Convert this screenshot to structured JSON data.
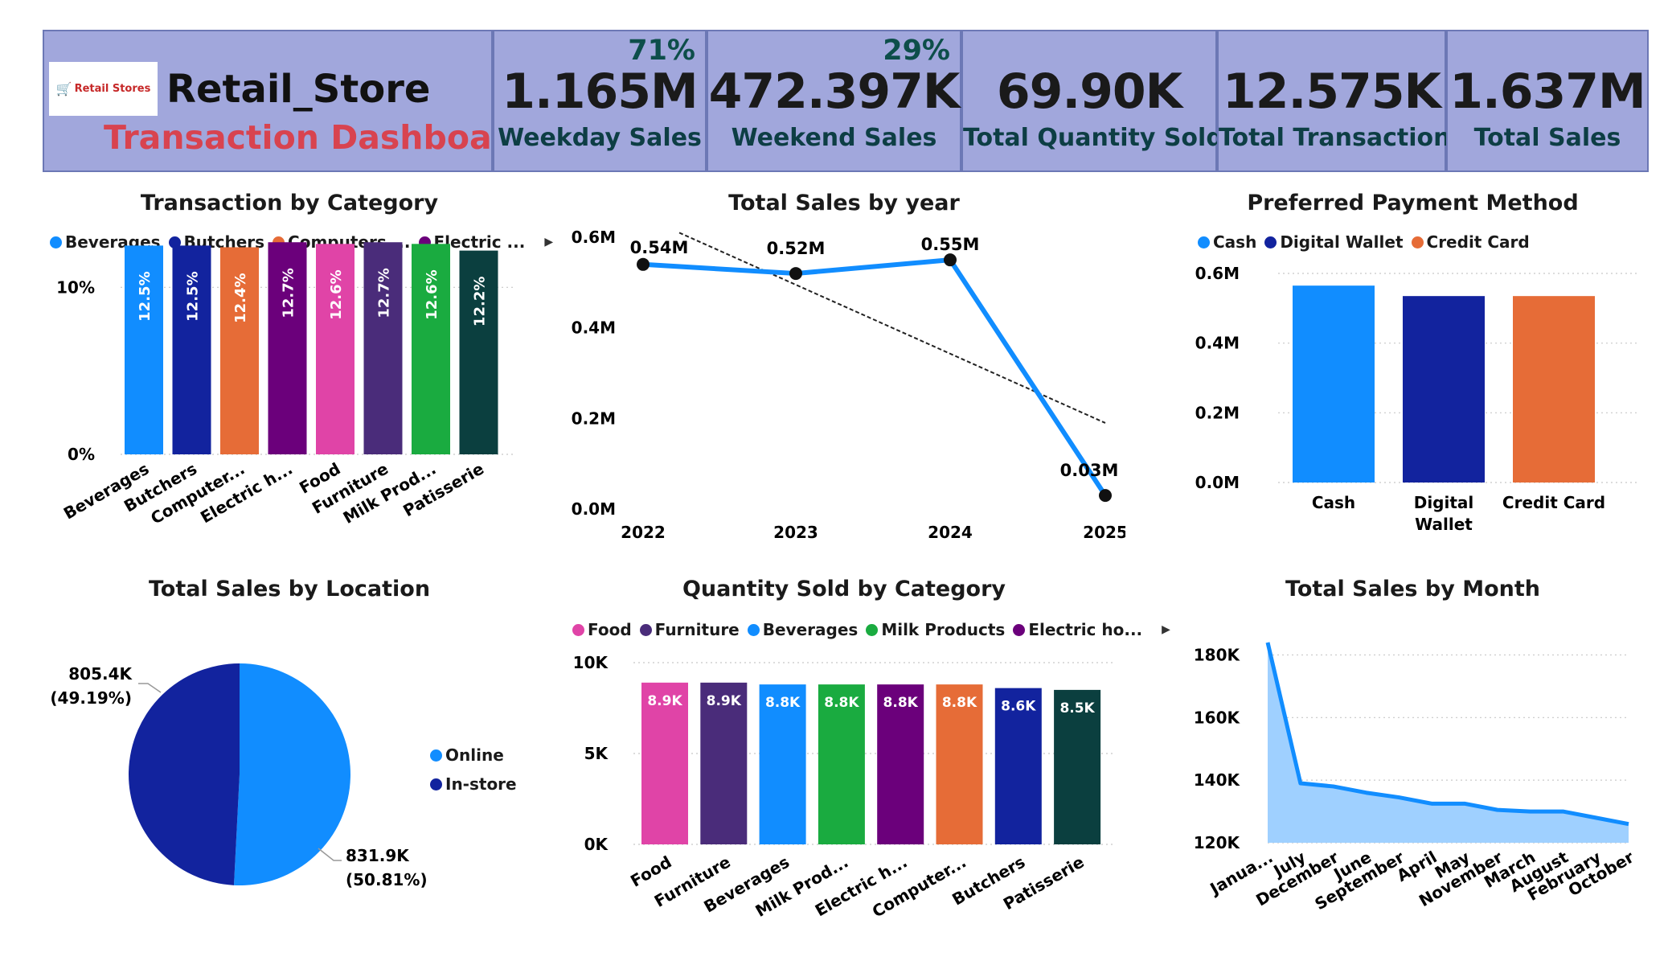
{
  "header": {
    "logo_text": "Retail Stores",
    "brand": "Retail_Store",
    "subtitle": "Transaction Dashboard",
    "kpis": [
      {
        "value": "1.165M",
        "label": "Weekday Sales",
        "pct": "71%"
      },
      {
        "value": "472.397K",
        "label": "Weekend Sales",
        "pct": "29%"
      },
      {
        "value": "69.90K",
        "label": "Total Quantity Sold",
        "pct": ""
      },
      {
        "value": "12.575K",
        "label": "Total Transaction",
        "pct": ""
      },
      {
        "value": "1.637M",
        "label": "Total Sales",
        "pct": ""
      }
    ]
  },
  "colors": {
    "header_bg": "#a1a7dc",
    "beverages": "#118dff",
    "butchers": "#12239e",
    "computers": "#e66c37",
    "electric": "#6b007b",
    "food": "#e044a7",
    "furniture": "#4a2c7a",
    "milk": "#1aab40",
    "patisserie": "#0b3f3f",
    "area_fill": "#9fd0ff"
  },
  "chart_data": [
    {
      "id": "transaction-by-category",
      "type": "bar",
      "title": "Transaction by Category",
      "legend": [
        {
          "name": "Beverages",
          "color": "#118dff"
        },
        {
          "name": "Butchers",
          "color": "#12239e"
        },
        {
          "name": "Computers ...",
          "color": "#e66c37"
        },
        {
          "name": "Electric ...",
          "color": "#6b007b"
        }
      ],
      "categories": [
        "Beverages",
        "Butchers",
        "Computer...",
        "Electric h...",
        "Food",
        "Furniture",
        "Milk Prod...",
        "Patisserie"
      ],
      "values": [
        12.5,
        12.5,
        12.4,
        12.7,
        12.6,
        12.7,
        12.6,
        12.2
      ],
      "labels": [
        "12.5%",
        "12.5%",
        "12.4%",
        "12.7%",
        "12.6%",
        "12.7%",
        "12.6%",
        "12.2%"
      ],
      "colors": [
        "#118dff",
        "#12239e",
        "#e66c37",
        "#6b007b",
        "#e044a7",
        "#4a2c7a",
        "#1aab40",
        "#0b3f3f"
      ],
      "ylim": [
        0,
        13
      ],
      "yticks": [
        {
          "v": 0,
          "label": "0%"
        },
        {
          "v": 10,
          "label": "10%"
        }
      ]
    },
    {
      "id": "total-sales-by-year",
      "type": "line",
      "title": "Total Sales by year",
      "x": [
        "2022",
        "2023",
        "2024",
        "2025"
      ],
      "values": [
        0.54,
        0.52,
        0.55,
        0.03
      ],
      "labels": [
        "0.54M",
        "0.52M",
        "0.55M",
        "0.03M"
      ],
      "trend": [
        0.61,
        0.19
      ],
      "ylim": [
        0,
        0.6
      ],
      "yticks": [
        {
          "v": 0,
          "label": "0.0M"
        },
        {
          "v": 0.2,
          "label": "0.2M"
        },
        {
          "v": 0.4,
          "label": "0.4M"
        },
        {
          "v": 0.6,
          "label": "0.6M"
        }
      ]
    },
    {
      "id": "preferred-payment-method",
      "type": "bar",
      "title": "Preferred Payment Method",
      "legend": [
        {
          "name": "Cash",
          "color": "#118dff"
        },
        {
          "name": "Digital Wallet",
          "color": "#12239e"
        },
        {
          "name": "Credit Card",
          "color": "#e66c37"
        }
      ],
      "categories": [
        "Cash",
        "Digital Wallet",
        "Credit Card"
      ],
      "values": [
        0.565,
        0.535,
        0.535
      ],
      "colors": [
        "#118dff",
        "#12239e",
        "#e66c37"
      ],
      "ylim": [
        0,
        0.6
      ],
      "yticks": [
        {
          "v": 0,
          "label": "0.0M"
        },
        {
          "v": 0.2,
          "label": "0.2M"
        },
        {
          "v": 0.4,
          "label": "0.4M"
        },
        {
          "v": 0.6,
          "label": "0.6M"
        }
      ]
    },
    {
      "id": "total-sales-by-location",
      "type": "pie",
      "title": "Total Sales by Location",
      "slices": [
        {
          "name": "Online",
          "value": 831.9,
          "label": "831.9K",
          "pct_label": "(50.81%)",
          "color": "#118dff"
        },
        {
          "name": "In-store",
          "value": 805.4,
          "label": "805.4K",
          "pct_label": "(49.19%)",
          "color": "#12239e"
        }
      ],
      "legend": [
        {
          "name": "Online",
          "color": "#118dff"
        },
        {
          "name": "In-store",
          "color": "#12239e"
        }
      ]
    },
    {
      "id": "quantity-sold-by-category",
      "type": "bar",
      "title": "Quantity Sold by Category",
      "legend": [
        {
          "name": "Food",
          "color": "#e044a7"
        },
        {
          "name": "Furniture",
          "color": "#4a2c7a"
        },
        {
          "name": "Beverages",
          "color": "#118dff"
        },
        {
          "name": "Milk Products",
          "color": "#1aab40"
        },
        {
          "name": "Electric ho...",
          "color": "#6b007b"
        }
      ],
      "categories": [
        "Food",
        "Furniture",
        "Beverages",
        "Milk Prod...",
        "Electric h...",
        "Computer...",
        "Butchers",
        "Patisserie"
      ],
      "values": [
        8.9,
        8.9,
        8.8,
        8.8,
        8.8,
        8.8,
        8.6,
        8.5
      ],
      "labels": [
        "8.9K",
        "8.9K",
        "8.8K",
        "8.8K",
        "8.8K",
        "8.8K",
        "8.6K",
        "8.5K"
      ],
      "colors": [
        "#e044a7",
        "#4a2c7a",
        "#118dff",
        "#1aab40",
        "#6b007b",
        "#e66c37",
        "#12239e",
        "#0b3f3f"
      ],
      "ylim": [
        0,
        10
      ],
      "yticks": [
        {
          "v": 0,
          "label": "0K"
        },
        {
          "v": 5,
          "label": "5K"
        },
        {
          "v": 10,
          "label": "10K"
        }
      ]
    },
    {
      "id": "total-sales-by-month",
      "type": "area",
      "title": "Total Sales by Month",
      "categories": [
        "Janua...",
        "July",
        "December",
        "June",
        "September",
        "April",
        "May",
        "November",
        "March",
        "August",
        "February",
        "October"
      ],
      "values": [
        184,
        139,
        138,
        136,
        134.5,
        132.5,
        132.5,
        130.5,
        130,
        130,
        128,
        126
      ],
      "ylim": [
        120,
        185
      ],
      "yticks": [
        {
          "v": 120,
          "label": "120K"
        },
        {
          "v": 140,
          "label": "140K"
        },
        {
          "v": 160,
          "label": "160K"
        },
        {
          "v": 180,
          "label": "180K"
        }
      ]
    }
  ]
}
